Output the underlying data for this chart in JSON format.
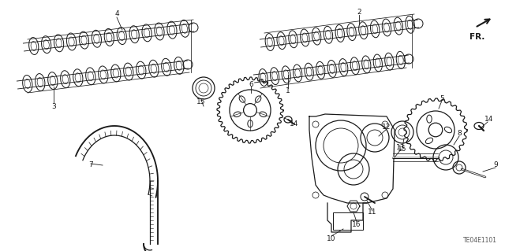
{
  "bg_color": "#ffffff",
  "fig_width": 6.4,
  "fig_height": 3.19,
  "dpi": 100,
  "diagram_code": "TE04E1101",
  "line_color": "#1a1a1a",
  "text_color": "#111111"
}
